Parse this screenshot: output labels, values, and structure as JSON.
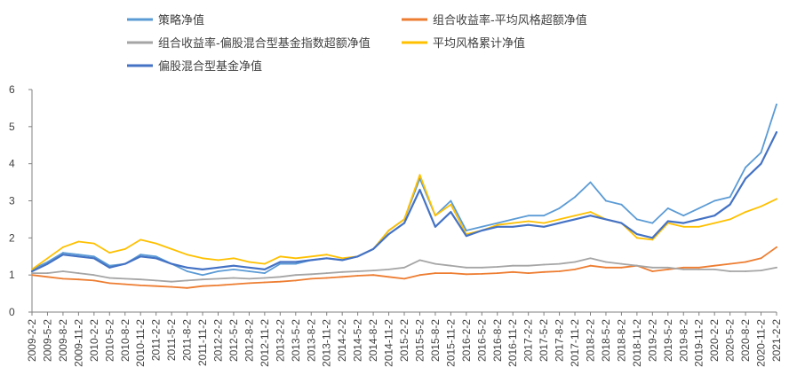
{
  "chart_data": {
    "type": "line",
    "title": "",
    "xlabel": "",
    "ylabel": "",
    "ylim": [
      0,
      6
    ],
    "yticks": [
      0,
      1,
      2,
      3,
      4,
      5,
      6
    ],
    "grid": false,
    "legend_position": "top",
    "x_tick_labels": [
      "2009-2-2",
      "2009-5-2",
      "2009-8-2",
      "2009-11-2",
      "2010-2-2",
      "2010-5-2",
      "2010-8-2",
      "2010-11-2",
      "2011-2-2",
      "2011-5-2",
      "2011-8-2",
      "2011-11-2",
      "2012-2-2",
      "2012-5-2",
      "2012-8-2",
      "2012-11-2",
      "2013-2-2",
      "2013-5-2",
      "2013-8-2",
      "2013-11-2",
      "2014-2-2",
      "2014-5-2",
      "2014-8-2",
      "2014-11-2",
      "2015-2-2",
      "2015-5-2",
      "2015-8-2",
      "2015-11-2",
      "2016-2-2",
      "2016-5-2",
      "2016-8-2",
      "2016-11-2",
      "2017-2-2",
      "2017-5-2",
      "2017-8-2",
      "2017-11-2",
      "2018-2-2",
      "2018-5-2",
      "2018-8-2",
      "2018-11-2",
      "2019-2-2",
      "2019-5-2",
      "2019-8-2",
      "2019-11-2",
      "2020-2-2",
      "2020-5-2",
      "2020-8-2",
      "2020-11-2",
      "2021-2-2"
    ],
    "series": [
      {
        "name": "策略净值",
        "color": "#5B9BD5",
        "values": [
          1.15,
          1.35,
          1.6,
          1.55,
          1.5,
          1.25,
          1.3,
          1.55,
          1.5,
          1.3,
          1.1,
          1.0,
          1.1,
          1.15,
          1.1,
          1.05,
          1.3,
          1.3,
          1.4,
          1.45,
          1.4,
          1.5,
          1.7,
          2.2,
          2.5,
          3.6,
          2.6,
          3.0,
          2.2,
          2.3,
          2.4,
          2.5,
          2.6,
          2.6,
          2.8,
          3.1,
          3.5,
          3.0,
          2.9,
          2.5,
          2.4,
          2.8,
          2.6,
          2.8,
          3.0,
          3.1,
          3.9,
          4.3,
          5.6
        ]
      },
      {
        "name": "组合收益率-平均风格超额净值",
        "color": "#ED7D31",
        "values": [
          1.0,
          0.95,
          0.9,
          0.88,
          0.85,
          0.78,
          0.75,
          0.72,
          0.7,
          0.68,
          0.65,
          0.7,
          0.72,
          0.75,
          0.78,
          0.8,
          0.82,
          0.85,
          0.9,
          0.92,
          0.95,
          0.98,
          1.0,
          0.95,
          0.9,
          1.0,
          1.05,
          1.05,
          1.02,
          1.03,
          1.05,
          1.08,
          1.05,
          1.08,
          1.1,
          1.15,
          1.25,
          1.2,
          1.2,
          1.25,
          1.1,
          1.15,
          1.2,
          1.2,
          1.25,
          1.3,
          1.35,
          1.45,
          1.75
        ]
      },
      {
        "name": "组合收益率-偏股混合型基金指数超额净值",
        "color": "#A5A5A5",
        "values": [
          1.05,
          1.05,
          1.1,
          1.05,
          1.0,
          0.92,
          0.9,
          0.88,
          0.85,
          0.82,
          0.85,
          0.88,
          0.9,
          0.92,
          0.9,
          0.92,
          0.95,
          1.0,
          1.02,
          1.05,
          1.08,
          1.1,
          1.12,
          1.15,
          1.2,
          1.4,
          1.3,
          1.25,
          1.2,
          1.2,
          1.22,
          1.25,
          1.25,
          1.28,
          1.3,
          1.35,
          1.45,
          1.35,
          1.3,
          1.25,
          1.2,
          1.2,
          1.15,
          1.15,
          1.15,
          1.1,
          1.1,
          1.12,
          1.2
        ]
      },
      {
        "name": "平均风格累计净值",
        "color": "#FFC000",
        "values": [
          1.15,
          1.45,
          1.75,
          1.9,
          1.85,
          1.6,
          1.7,
          1.95,
          1.85,
          1.7,
          1.55,
          1.45,
          1.4,
          1.45,
          1.35,
          1.3,
          1.5,
          1.45,
          1.5,
          1.55,
          1.45,
          1.5,
          1.7,
          2.2,
          2.5,
          3.7,
          2.6,
          2.9,
          2.1,
          2.2,
          2.35,
          2.4,
          2.45,
          2.4,
          2.5,
          2.6,
          2.7,
          2.5,
          2.4,
          2.0,
          1.95,
          2.4,
          2.3,
          2.3,
          2.4,
          2.5,
          2.7,
          2.85,
          3.05
        ]
      },
      {
        "name": "偏股混合型基金净值",
        "color": "#4472C4",
        "values": [
          1.1,
          1.3,
          1.55,
          1.5,
          1.45,
          1.2,
          1.3,
          1.5,
          1.45,
          1.3,
          1.2,
          1.15,
          1.2,
          1.25,
          1.2,
          1.15,
          1.35,
          1.35,
          1.4,
          1.45,
          1.4,
          1.5,
          1.7,
          2.1,
          2.4,
          3.3,
          2.3,
          2.7,
          2.05,
          2.2,
          2.3,
          2.3,
          2.35,
          2.3,
          2.4,
          2.5,
          2.6,
          2.5,
          2.4,
          2.1,
          2.0,
          2.45,
          2.4,
          2.5,
          2.6,
          2.9,
          3.6,
          4.0,
          4.85
        ]
      }
    ]
  }
}
